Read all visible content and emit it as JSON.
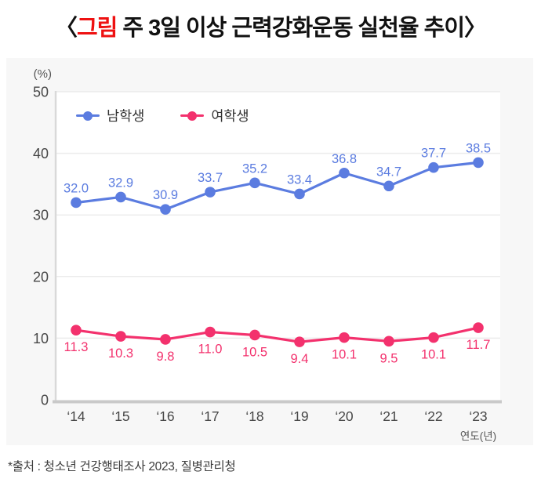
{
  "title": {
    "bracket_open": "〈",
    "highlight": "그림",
    "rest": " 주 3일 이상 근력강화운동 실천율 추이",
    "bracket_close": "〉",
    "highlight_color": "#ee1111"
  },
  "source_note": "*출처 : 청소년 건강행태조사 2023, 질병관리청",
  "colors": {
    "panel_background": "#f7f7f7",
    "plot_background": "#ffffff",
    "gridline": "#ececec",
    "axis_left": "#d9d9d9",
    "axis_bottom": "#c9c9c9",
    "tick_label": "#474747",
    "male_series": "#5b7ce0",
    "female_series": "#f3316d",
    "title_highlight": "#ee1111"
  },
  "chart_data": {
    "type": "line",
    "title": "주 3일 이상 근력강화운동 실천율 추이",
    "unit_label": "(%)",
    "xlabel": "연도(년)",
    "ylabel": "",
    "ylim": [
      0,
      50
    ],
    "yticks": [
      0,
      10,
      20,
      30,
      40,
      50
    ],
    "grid": true,
    "legend_position": "top-left-inside",
    "categories": [
      "‘14",
      "‘15",
      "‘16",
      "‘17",
      "‘18",
      "‘19",
      "‘20",
      "‘21",
      "‘22",
      "‘23"
    ],
    "series": [
      {
        "name": "남학생",
        "color": "#5b7ce0",
        "values": [
          32.0,
          32.9,
          30.9,
          33.7,
          35.2,
          33.4,
          36.8,
          34.7,
          37.7,
          38.5
        ],
        "labels": [
          "32.0",
          "32.9",
          "30.9",
          "33.7",
          "35.2",
          "33.4",
          "36.8",
          "34.7",
          "37.7",
          "38.5"
        ],
        "label_position": "above"
      },
      {
        "name": "여학생",
        "color": "#f3316d",
        "values": [
          11.3,
          10.3,
          9.8,
          11.0,
          10.5,
          9.4,
          10.1,
          9.5,
          10.1,
          11.7
        ],
        "labels": [
          "11.3",
          "10.3",
          "9.8",
          "11.0",
          "10.5",
          "9.4",
          "10.1",
          "9.5",
          "10.1",
          "11.7"
        ],
        "label_position": "below"
      }
    ]
  }
}
